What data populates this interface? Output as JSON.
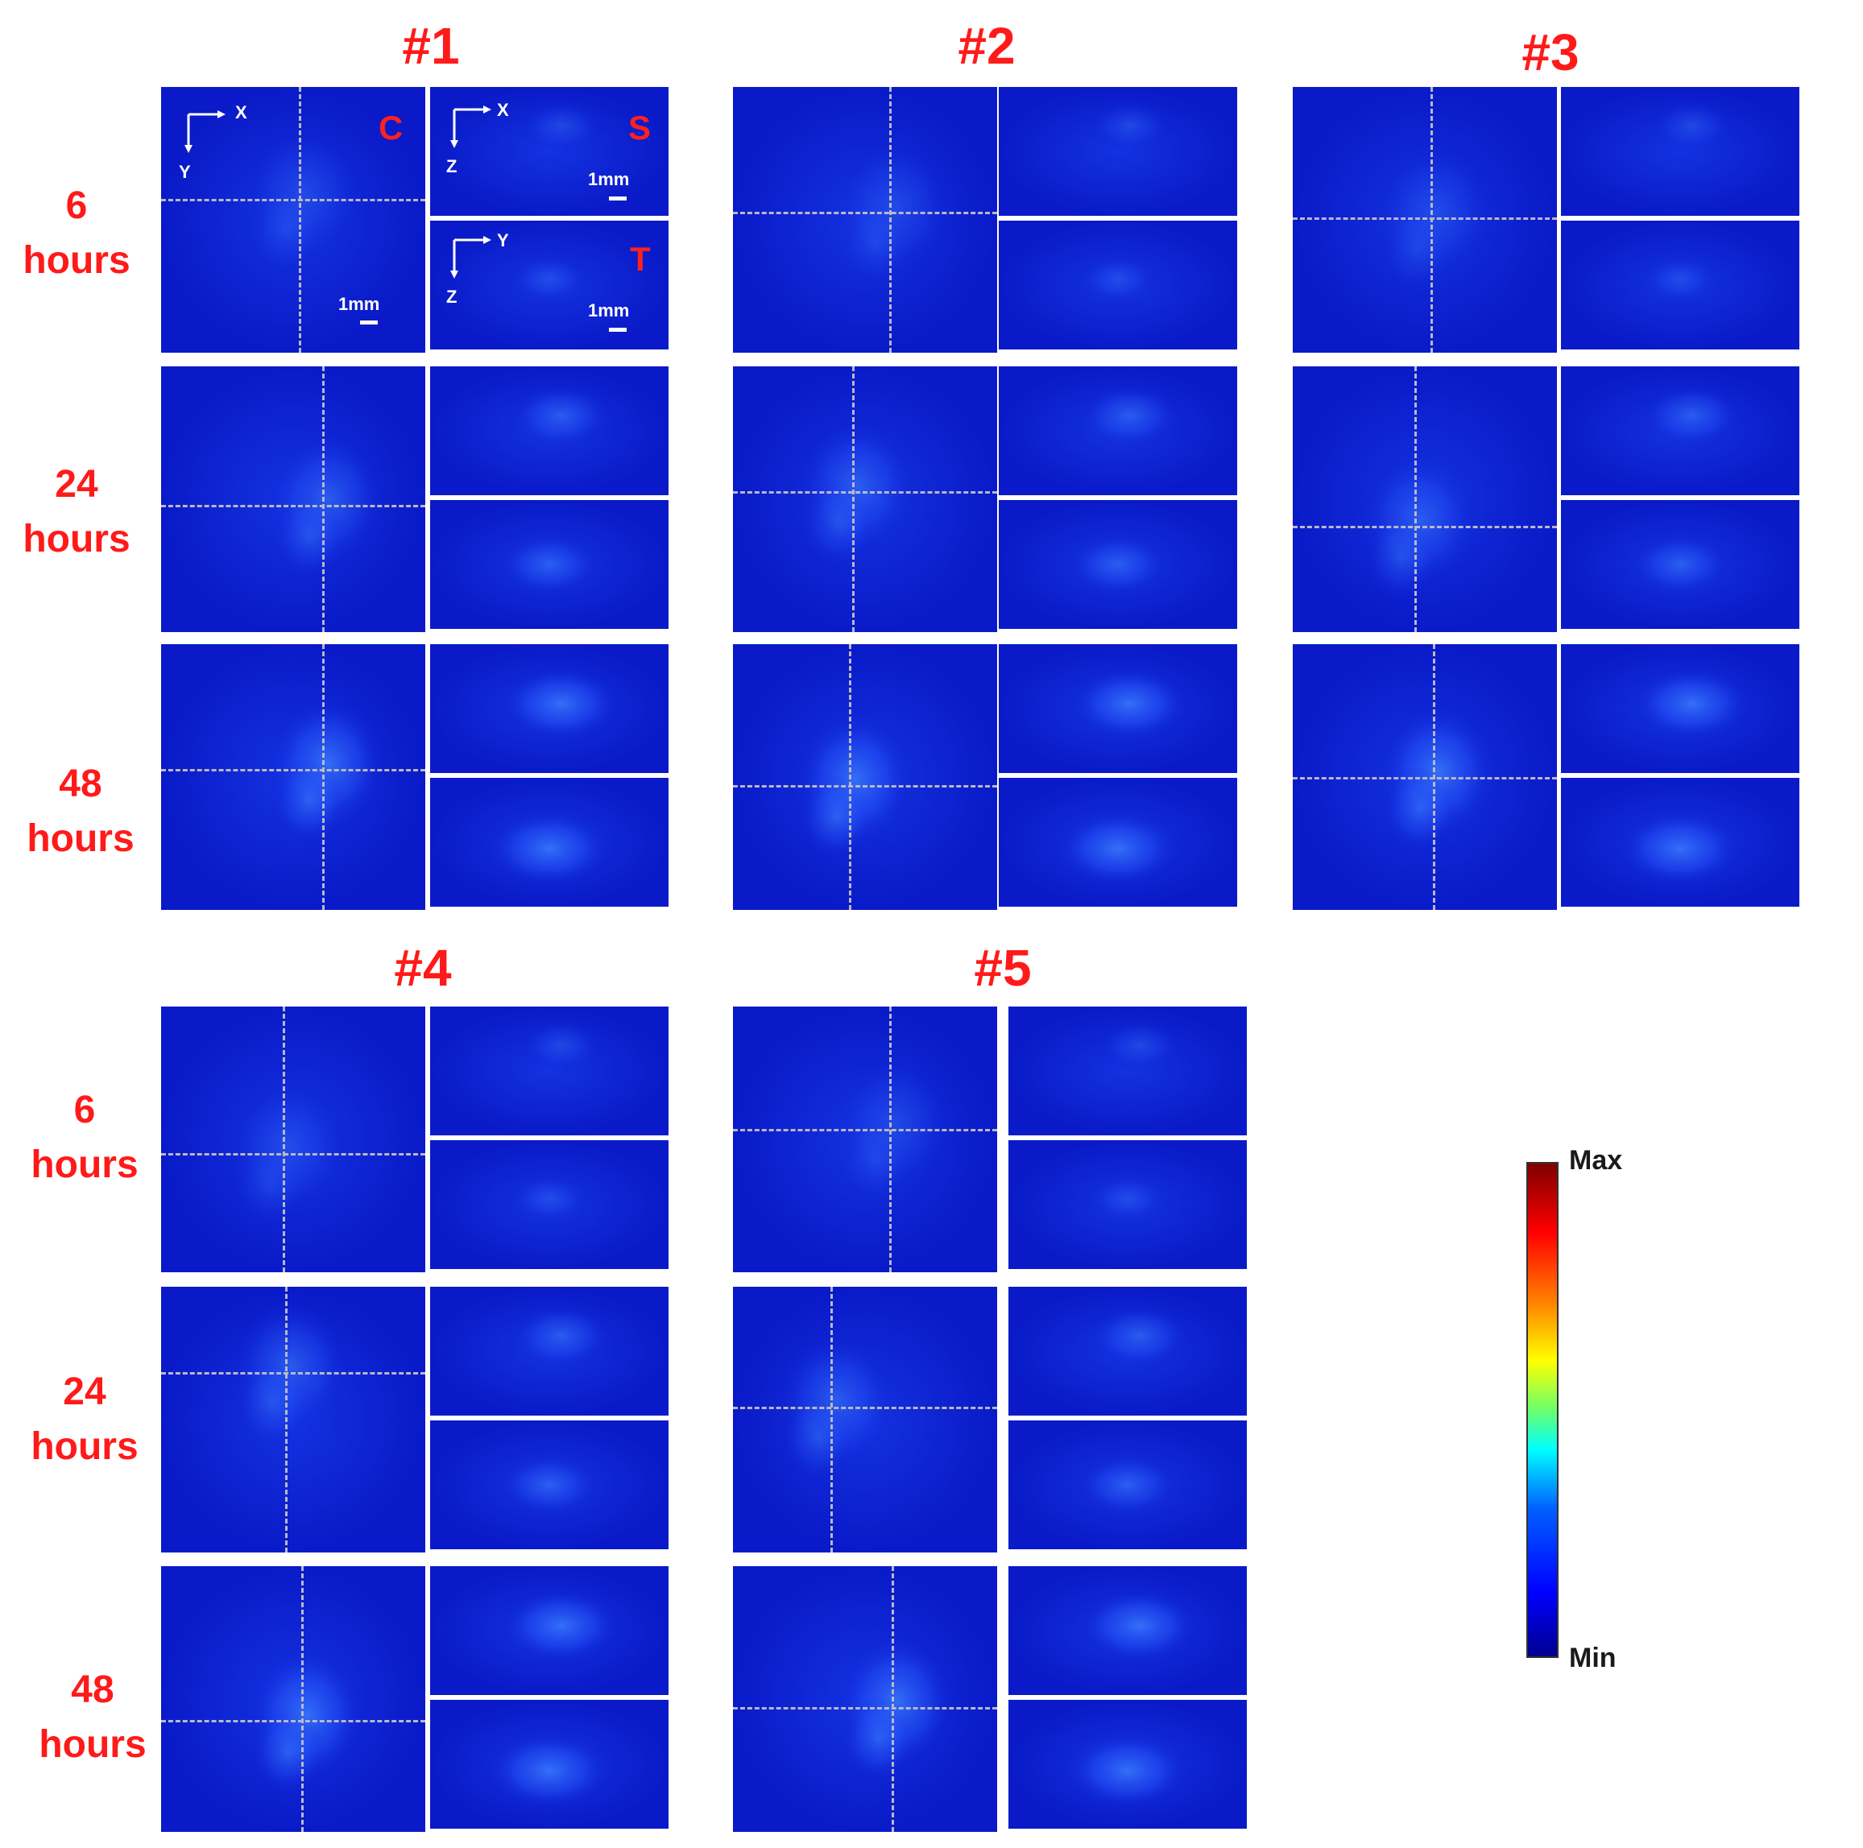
{
  "groups": [
    {
      "title": "#1",
      "rows": [
        "6\nhours",
        "24\nhours",
        "48\nhours"
      ]
    },
    {
      "title": "#2"
    },
    {
      "title": "#3"
    },
    {
      "title": "#4",
      "rows": [
        "6\nhours",
        "24\nhours",
        "48\nhours"
      ]
    },
    {
      "title": "#5"
    }
  ],
  "view_labels": {
    "coronal": "C",
    "sagittal": "S",
    "transverse": "T"
  },
  "axes": {
    "x": "X",
    "y": "Y",
    "z": "Z"
  },
  "scale_text": "1mm",
  "colorbar": {
    "max": "Max",
    "min": "Min"
  },
  "colors": {
    "label_red": "#ff1a1a",
    "background_blue": "#0b1fd6",
    "spot_blue": "#2f6cff"
  }
}
